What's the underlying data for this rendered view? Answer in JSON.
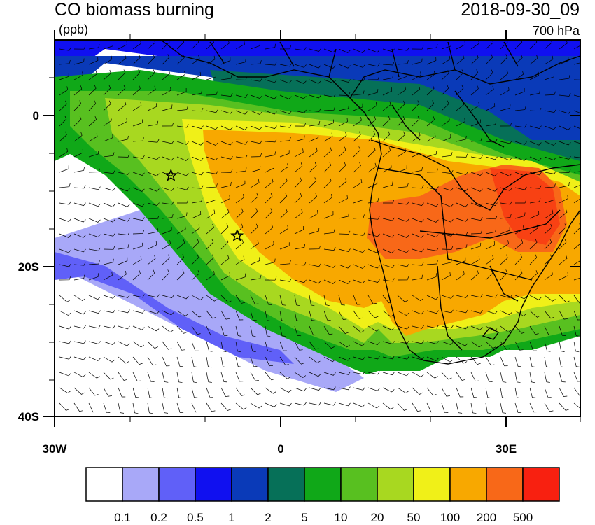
{
  "title": "CO biomass burning",
  "datetime": "2018-09-30_09",
  "units": "(ppb)",
  "level": "700 hPa",
  "axes": {
    "y_ticks": [
      "0",
      "20S",
      "40S"
    ],
    "x_ticks": [
      "30W",
      "0",
      "30E"
    ]
  },
  "colorbar": {
    "colors": [
      "#ffffff",
      "#a8a8f8",
      "#6060f8",
      "#1010f0",
      "#0a3ab8",
      "#067058",
      "#10a818",
      "#58c020",
      "#a8d820",
      "#f0f018",
      "#f8a800",
      "#f86818",
      "#f82010"
    ],
    "labels": [
      "0.1",
      "0.2",
      "0.5",
      "1",
      "2",
      "5",
      "10",
      "20",
      "50",
      "100",
      "200",
      "500"
    ]
  },
  "markers": [
    {
      "name": "star-site-1",
      "lon": -14.5,
      "lat": -8
    },
    {
      "name": "star-site-2",
      "lon": -5.7,
      "lat": -16
    }
  ],
  "map": {
    "lon_range": [
      -30,
      40
    ],
    "lat_range": [
      -40,
      10
    ]
  }
}
